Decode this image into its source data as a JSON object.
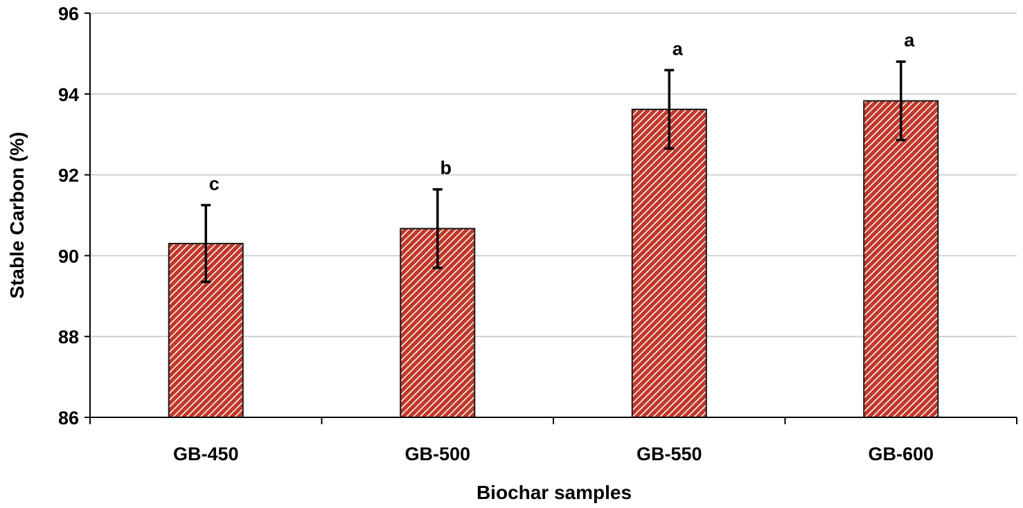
{
  "chart_data": {
    "type": "bar",
    "categories": [
      "GB-450",
      "GB-500",
      "GB-550",
      "GB-600"
    ],
    "values": [
      90.3,
      90.67,
      93.62,
      93.83
    ],
    "errors": [
      0.95,
      0.97,
      0.97,
      0.97
    ],
    "significance_letters": [
      "c",
      "b",
      "a",
      "a"
    ],
    "xlabel": "Biochar samples",
    "ylabel": "Stable Carbon (%)",
    "ylim": [
      86,
      96
    ],
    "yticks": [
      86,
      88,
      90,
      92,
      94,
      96
    ],
    "grid": "horizontal",
    "colors": {
      "bar_fill": "#c0392b",
      "bar_hatch": "#ffffff",
      "bar_border": "#1a1a1a",
      "grid": "#d0d0d0",
      "axis": "#000000"
    }
  }
}
